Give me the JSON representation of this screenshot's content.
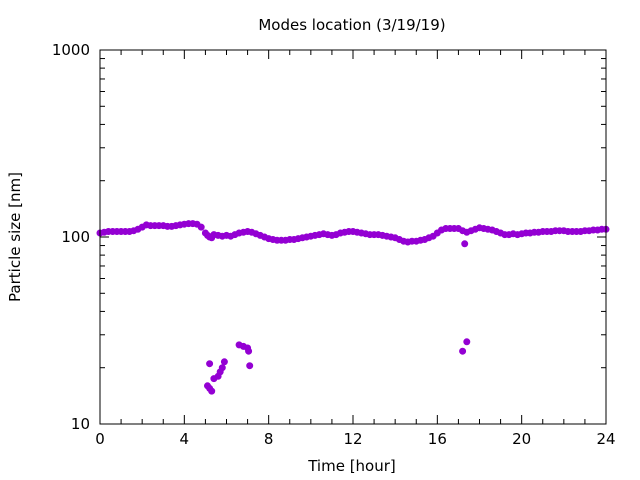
{
  "chart_data": {
    "type": "scatter",
    "title": "Modes location (3/19/19)",
    "xlabel": "Time [hour]",
    "ylabel": "Particle size [nm]",
    "xlim": [
      0,
      24
    ],
    "ylim": [
      10,
      1000
    ],
    "yscale": "log",
    "xticks": [
      0,
      4,
      8,
      12,
      16,
      20,
      24
    ],
    "xtick_labels": [
      "0",
      "4",
      "8",
      "12",
      "16",
      "20",
      "24"
    ],
    "yticks": [
      10,
      100,
      1000
    ],
    "ytick_labels": [
      "10",
      "100",
      "1000"
    ],
    "grid": false,
    "legend": "none",
    "marker_color": "#9400d3",
    "series": [
      {
        "points": [
          [
            0.0,
            105
          ],
          [
            0.2,
            106
          ],
          [
            0.4,
            107
          ],
          [
            0.6,
            107
          ],
          [
            0.8,
            107
          ],
          [
            1.0,
            107
          ],
          [
            1.2,
            107
          ],
          [
            1.4,
            107
          ],
          [
            1.6,
            108
          ],
          [
            1.8,
            110
          ],
          [
            2.0,
            113
          ],
          [
            2.2,
            116
          ],
          [
            2.4,
            115
          ],
          [
            2.6,
            115
          ],
          [
            2.8,
            115
          ],
          [
            3.0,
            115
          ],
          [
            3.2,
            114
          ],
          [
            3.4,
            114
          ],
          [
            3.6,
            115
          ],
          [
            3.8,
            116
          ],
          [
            4.0,
            117
          ],
          [
            4.2,
            118
          ],
          [
            4.4,
            118
          ],
          [
            4.6,
            117
          ],
          [
            4.8,
            113
          ],
          [
            5.0,
            105
          ],
          [
            5.1,
            102
          ],
          [
            5.2,
            100
          ],
          [
            5.3,
            99
          ],
          [
            5.4,
            103
          ],
          [
            5.6,
            102
          ],
          [
            5.8,
            101
          ],
          [
            6.0,
            102
          ],
          [
            6.2,
            101
          ],
          [
            6.4,
            103
          ],
          [
            6.6,
            105
          ],
          [
            6.8,
            106
          ],
          [
            7.0,
            107
          ],
          [
            7.2,
            106
          ],
          [
            7.4,
            104
          ],
          [
            7.6,
            102
          ],
          [
            7.8,
            100
          ],
          [
            8.0,
            98
          ],
          [
            8.2,
            97
          ],
          [
            8.4,
            96
          ],
          [
            8.6,
            96
          ],
          [
            8.8,
            96
          ],
          [
            9.0,
            97
          ],
          [
            9.2,
            97
          ],
          [
            9.4,
            98
          ],
          [
            9.6,
            99
          ],
          [
            9.8,
            100
          ],
          [
            10.0,
            101
          ],
          [
            10.2,
            102
          ],
          [
            10.4,
            103
          ],
          [
            10.6,
            104
          ],
          [
            10.8,
            103
          ],
          [
            11.0,
            102
          ],
          [
            11.2,
            103
          ],
          [
            11.4,
            105
          ],
          [
            11.6,
            106
          ],
          [
            11.8,
            107
          ],
          [
            12.0,
            107
          ],
          [
            12.2,
            106
          ],
          [
            12.4,
            105
          ],
          [
            12.6,
            104
          ],
          [
            12.8,
            103
          ],
          [
            13.0,
            103
          ],
          [
            13.2,
            103
          ],
          [
            13.4,
            102
          ],
          [
            13.6,
            101
          ],
          [
            13.8,
            100
          ],
          [
            14.0,
            99
          ],
          [
            14.2,
            97
          ],
          [
            14.4,
            95
          ],
          [
            14.6,
            94
          ],
          [
            14.8,
            95
          ],
          [
            15.0,
            95
          ],
          [
            15.2,
            96
          ],
          [
            15.4,
            97
          ],
          [
            15.6,
            99
          ],
          [
            15.8,
            101
          ],
          [
            16.0,
            105
          ],
          [
            16.2,
            109
          ],
          [
            16.4,
            111
          ],
          [
            16.6,
            111
          ],
          [
            16.8,
            111
          ],
          [
            17.0,
            111
          ],
          [
            17.2,
            108
          ],
          [
            17.4,
            106
          ],
          [
            17.6,
            108
          ],
          [
            17.8,
            110
          ],
          [
            18.0,
            112
          ],
          [
            18.2,
            111
          ],
          [
            18.4,
            110
          ],
          [
            18.6,
            109
          ],
          [
            18.8,
            107
          ],
          [
            19.0,
            105
          ],
          [
            19.2,
            103
          ],
          [
            19.4,
            103
          ],
          [
            19.6,
            104
          ],
          [
            19.8,
            103
          ],
          [
            20.0,
            104
          ],
          [
            20.2,
            105
          ],
          [
            20.4,
            105
          ],
          [
            20.6,
            106
          ],
          [
            20.8,
            106
          ],
          [
            21.0,
            107
          ],
          [
            21.2,
            107
          ],
          [
            21.4,
            107
          ],
          [
            21.6,
            108
          ],
          [
            21.8,
            108
          ],
          [
            22.0,
            108
          ],
          [
            22.2,
            107
          ],
          [
            22.4,
            107
          ],
          [
            22.6,
            107
          ],
          [
            22.8,
            107
          ],
          [
            23.0,
            108
          ],
          [
            23.2,
            108
          ],
          [
            23.4,
            109
          ],
          [
            23.6,
            109
          ],
          [
            23.8,
            110
          ],
          [
            24.0,
            110
          ]
        ]
      },
      {
        "points": [
          [
            5.2,
            21
          ],
          [
            5.1,
            16
          ],
          [
            5.2,
            15.5
          ],
          [
            5.3,
            15
          ],
          [
            5.4,
            17.5
          ],
          [
            5.6,
            18
          ],
          [
            5.7,
            19
          ],
          [
            5.8,
            20
          ],
          [
            5.9,
            21.5
          ],
          [
            6.6,
            26.5
          ],
          [
            6.8,
            26
          ],
          [
            7.0,
            25.5
          ],
          [
            7.05,
            24.5
          ],
          [
            7.1,
            20.5
          ],
          [
            17.2,
            24.5
          ],
          [
            17.3,
            92
          ],
          [
            17.4,
            27.5
          ]
        ]
      }
    ]
  }
}
